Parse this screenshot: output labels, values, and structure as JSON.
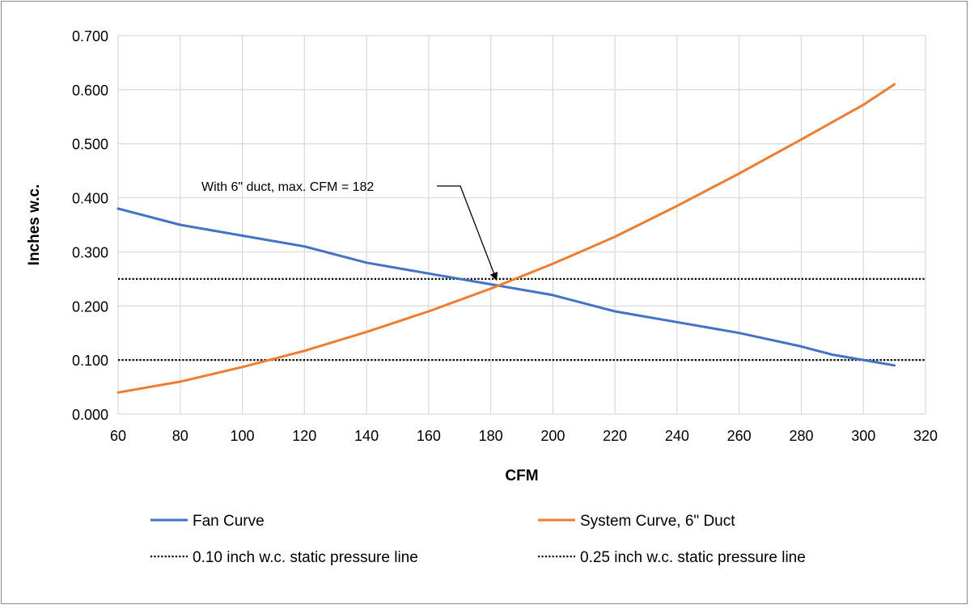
{
  "chart_data": {
    "type": "line",
    "title": "",
    "xlabel": "CFM",
    "ylabel": "Inches w.c.",
    "xlim": [
      60,
      320
    ],
    "ylim": [
      0,
      0.7
    ],
    "x_ticks": [
      "60",
      "80",
      "100",
      "120",
      "140",
      "160",
      "180",
      "200",
      "220",
      "240",
      "260",
      "280",
      "300",
      "320"
    ],
    "y_ticks": [
      "0.000",
      "0.100",
      "0.200",
      "0.300",
      "0.400",
      "0.500",
      "0.600",
      "0.700"
    ],
    "grid": "vertical and horizontal",
    "legend_position": "bottom",
    "series": [
      {
        "name": "Fan Curve",
        "color": "#4472C4",
        "style": "solid",
        "x": [
          60,
          80,
          100,
          120,
          140,
          160,
          180,
          200,
          220,
          240,
          260,
          280,
          290,
          300,
          310
        ],
        "y": [
          0.38,
          0.35,
          0.33,
          0.31,
          0.28,
          0.26,
          0.24,
          0.22,
          0.19,
          0.17,
          0.15,
          0.125,
          0.11,
          0.1,
          0.09
        ]
      },
      {
        "name": "System Curve, 6\" Duct",
        "color": "#ED7D31",
        "style": "solid",
        "x": [
          60,
          80,
          100,
          120,
          140,
          160,
          180,
          200,
          220,
          240,
          260,
          280,
          300,
          310
        ],
        "y": [
          0.04,
          0.06,
          0.087,
          0.117,
          0.152,
          0.19,
          0.232,
          0.278,
          0.328,
          0.385,
          0.445,
          0.508,
          0.572,
          0.61
        ]
      },
      {
        "name": "0.10 inch w.c. static pressure line",
        "color": "#000000",
        "style": "dotted",
        "x": [
          60,
          320
        ],
        "y": [
          0.1,
          0.1
        ]
      },
      {
        "name": "0.25 inch w.c. static pressure line",
        "color": "#000000",
        "style": "dotted",
        "x": [
          60,
          320
        ],
        "y": [
          0.25,
          0.25
        ]
      }
    ],
    "annotation": {
      "text": "With 6\" duct, max. CFM = 182",
      "target_x": 182,
      "target_y": 0.236
    }
  }
}
